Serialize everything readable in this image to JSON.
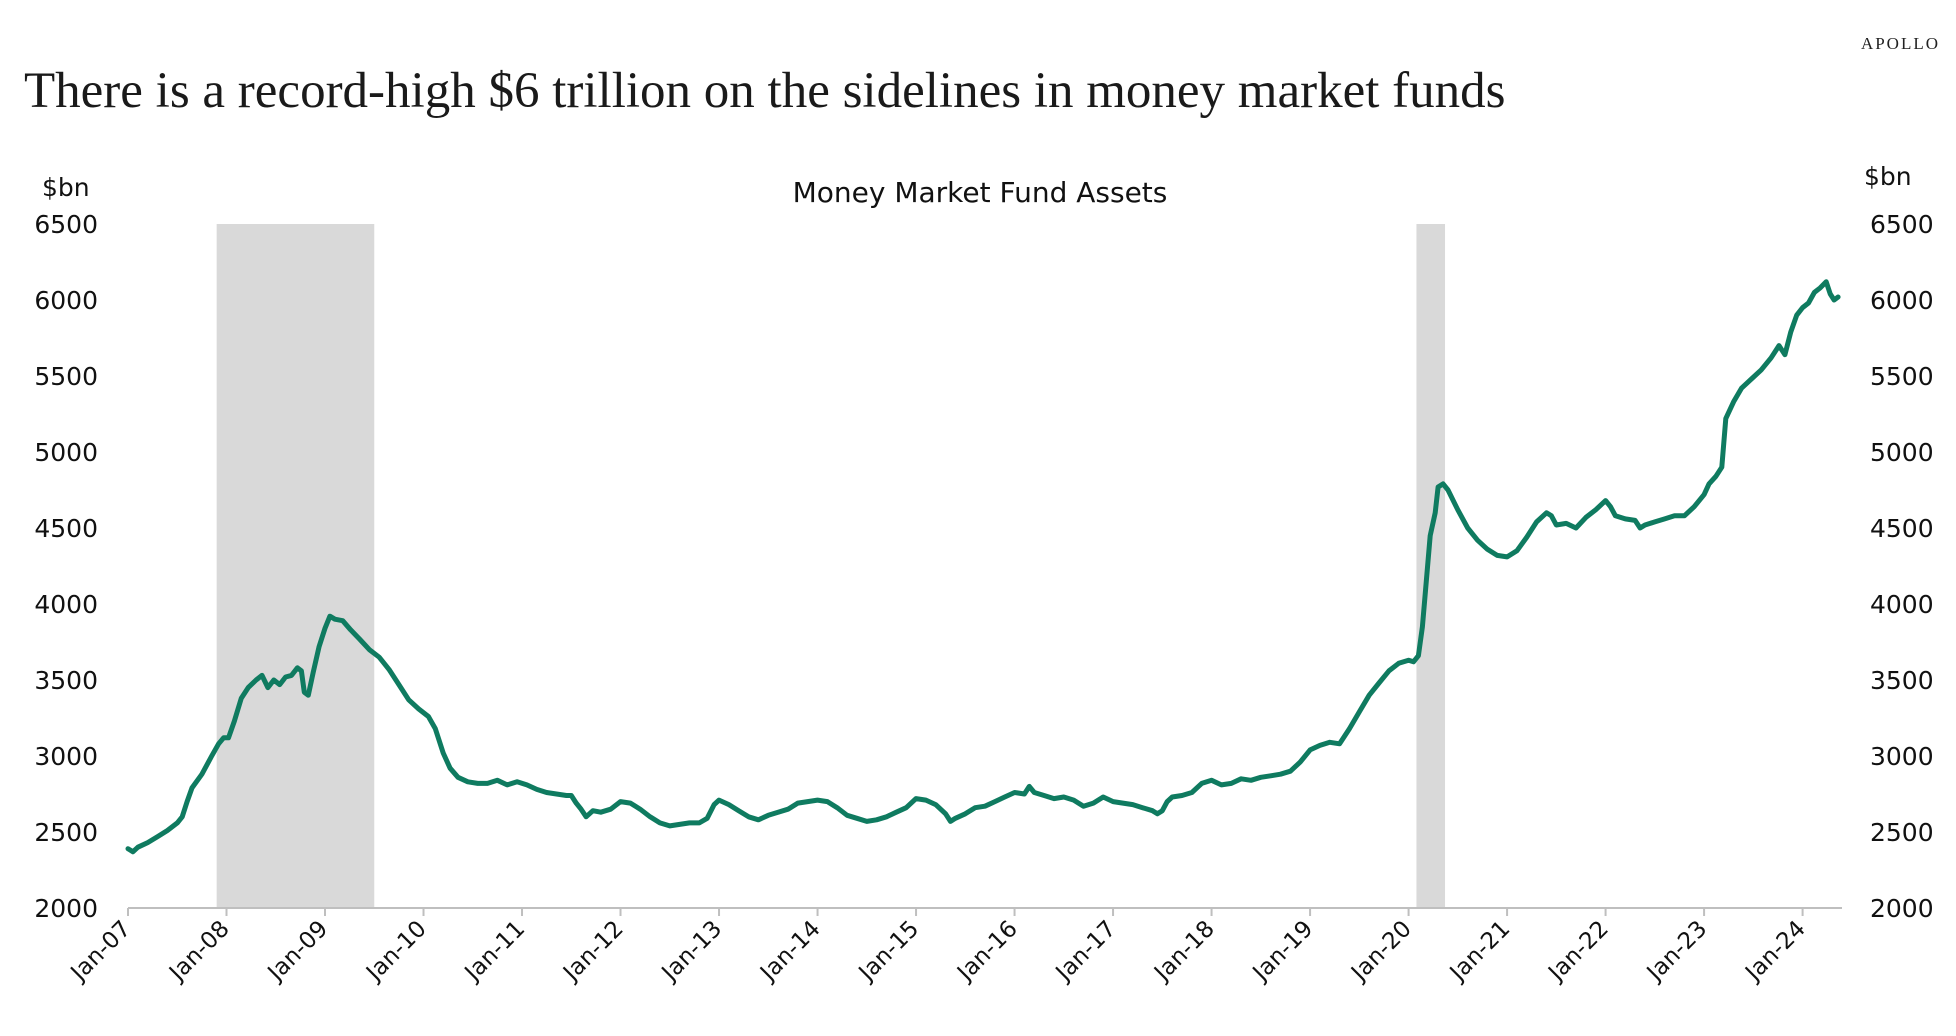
{
  "header": {
    "brand": "APOLLO",
    "headline": "There is a record-high $6 trillion on the sidelines in money market funds"
  },
  "chart_data": {
    "type": "line",
    "title": "Money Market Fund Assets",
    "ylabel_left": "$bn",
    "ylabel_right": "$bn",
    "ylim": [
      2000,
      6500
    ],
    "yticks": [
      2000,
      2500,
      3000,
      3500,
      4000,
      4500,
      5000,
      5500,
      6000,
      6500
    ],
    "xlim": [
      2007.0,
      2024.4
    ],
    "xticks": [
      {
        "x": 2007,
        "label": "Jan-07"
      },
      {
        "x": 2008,
        "label": "Jan-08"
      },
      {
        "x": 2009,
        "label": "Jan-09"
      },
      {
        "x": 2010,
        "label": "Jan-10"
      },
      {
        "x": 2011,
        "label": "Jan-11"
      },
      {
        "x": 2012,
        "label": "Jan-12"
      },
      {
        "x": 2013,
        "label": "Jan-13"
      },
      {
        "x": 2014,
        "label": "Jan-14"
      },
      {
        "x": 2015,
        "label": "Jan-15"
      },
      {
        "x": 2016,
        "label": "Jan-16"
      },
      {
        "x": 2017,
        "label": "Jan-17"
      },
      {
        "x": 2018,
        "label": "Jan-18"
      },
      {
        "x": 2019,
        "label": "Jan-19"
      },
      {
        "x": 2020,
        "label": "Jan-20"
      },
      {
        "x": 2021,
        "label": "Jan-21"
      },
      {
        "x": 2022,
        "label": "Jan-22"
      },
      {
        "x": 2023,
        "label": "Jan-23"
      },
      {
        "x": 2024,
        "label": "Jan-24"
      }
    ],
    "shaded_periods": [
      {
        "start": 2007.9,
        "end": 2009.5
      },
      {
        "start": 2020.08,
        "end": 2020.37
      }
    ],
    "grid": false,
    "line_color": "#0f7b60",
    "shade_color": "#d9d9d9",
    "series": [
      {
        "points": [
          [
            2007.0,
            2390
          ],
          [
            2007.05,
            2370
          ],
          [
            2007.1,
            2400
          ],
          [
            2007.2,
            2430
          ],
          [
            2007.3,
            2470
          ],
          [
            2007.4,
            2510
          ],
          [
            2007.5,
            2560
          ],
          [
            2007.55,
            2600
          ],
          [
            2007.6,
            2700
          ],
          [
            2007.65,
            2790
          ],
          [
            2007.75,
            2880
          ],
          [
            2007.85,
            3000
          ],
          [
            2007.92,
            3080
          ],
          [
            2007.97,
            3120
          ],
          [
            2008.02,
            3120
          ],
          [
            2008.08,
            3230
          ],
          [
            2008.15,
            3380
          ],
          [
            2008.22,
            3450
          ],
          [
            2008.3,
            3500
          ],
          [
            2008.36,
            3530
          ],
          [
            2008.42,
            3450
          ],
          [
            2008.48,
            3500
          ],
          [
            2008.54,
            3470
          ],
          [
            2008.6,
            3520
          ],
          [
            2008.66,
            3530
          ],
          [
            2008.72,
            3580
          ],
          [
            2008.76,
            3560
          ],
          [
            2008.79,
            3420
          ],
          [
            2008.83,
            3400
          ],
          [
            2008.88,
            3550
          ],
          [
            2008.94,
            3720
          ],
          [
            2009.0,
            3840
          ],
          [
            2009.05,
            3920
          ],
          [
            2009.1,
            3900
          ],
          [
            2009.18,
            3890
          ],
          [
            2009.26,
            3830
          ],
          [
            2009.35,
            3770
          ],
          [
            2009.45,
            3700
          ],
          [
            2009.55,
            3650
          ],
          [
            2009.65,
            3570
          ],
          [
            2009.75,
            3470
          ],
          [
            2009.85,
            3370
          ],
          [
            2009.95,
            3310
          ],
          [
            2010.05,
            3260
          ],
          [
            2010.12,
            3180
          ],
          [
            2010.2,
            3020
          ],
          [
            2010.27,
            2920
          ],
          [
            2010.35,
            2860
          ],
          [
            2010.45,
            2830
          ],
          [
            2010.55,
            2820
          ],
          [
            2010.65,
            2820
          ],
          [
            2010.75,
            2840
          ],
          [
            2010.85,
            2810
          ],
          [
            2010.95,
            2830
          ],
          [
            2011.05,
            2810
          ],
          [
            2011.15,
            2780
          ],
          [
            2011.25,
            2760
          ],
          [
            2011.35,
            2750
          ],
          [
            2011.45,
            2740
          ],
          [
            2011.5,
            2740
          ],
          [
            2011.55,
            2690
          ],
          [
            2011.6,
            2650
          ],
          [
            2011.65,
            2600
          ],
          [
            2011.72,
            2640
          ],
          [
            2011.8,
            2630
          ],
          [
            2011.9,
            2650
          ],
          [
            2012.0,
            2700
          ],
          [
            2012.1,
            2690
          ],
          [
            2012.2,
            2650
          ],
          [
            2012.3,
            2600
          ],
          [
            2012.4,
            2560
          ],
          [
            2012.5,
            2540
          ],
          [
            2012.6,
            2550
          ],
          [
            2012.7,
            2560
          ],
          [
            2012.8,
            2560
          ],
          [
            2012.88,
            2590
          ],
          [
            2012.95,
            2680
          ],
          [
            2013.0,
            2710
          ],
          [
            2013.1,
            2680
          ],
          [
            2013.2,
            2640
          ],
          [
            2013.3,
            2600
          ],
          [
            2013.4,
            2580
          ],
          [
            2013.5,
            2610
          ],
          [
            2013.6,
            2630
          ],
          [
            2013.7,
            2650
          ],
          [
            2013.8,
            2690
          ],
          [
            2013.9,
            2700
          ],
          [
            2014.0,
            2710
          ],
          [
            2014.1,
            2700
          ],
          [
            2014.2,
            2660
          ],
          [
            2014.3,
            2610
          ],
          [
            2014.4,
            2590
          ],
          [
            2014.5,
            2570
          ],
          [
            2014.6,
            2580
          ],
          [
            2014.7,
            2600
          ],
          [
            2014.8,
            2630
          ],
          [
            2014.9,
            2660
          ],
          [
            2015.0,
            2720
          ],
          [
            2015.1,
            2710
          ],
          [
            2015.2,
            2680
          ],
          [
            2015.3,
            2620
          ],
          [
            2015.35,
            2570
          ],
          [
            2015.4,
            2590
          ],
          [
            2015.5,
            2620
          ],
          [
            2015.6,
            2660
          ],
          [
            2015.7,
            2670
          ],
          [
            2015.8,
            2700
          ],
          [
            2015.9,
            2730
          ],
          [
            2016.0,
            2760
          ],
          [
            2016.1,
            2750
          ],
          [
            2016.15,
            2800
          ],
          [
            2016.2,
            2760
          ],
          [
            2016.3,
            2740
          ],
          [
            2016.4,
            2720
          ],
          [
            2016.5,
            2730
          ],
          [
            2016.6,
            2710
          ],
          [
            2016.7,
            2670
          ],
          [
            2016.8,
            2690
          ],
          [
            2016.9,
            2730
          ],
          [
            2017.0,
            2700
          ],
          [
            2017.1,
            2690
          ],
          [
            2017.2,
            2680
          ],
          [
            2017.3,
            2660
          ],
          [
            2017.4,
            2640
          ],
          [
            2017.45,
            2620
          ],
          [
            2017.5,
            2640
          ],
          [
            2017.55,
            2700
          ],
          [
            2017.6,
            2730
          ],
          [
            2017.7,
            2740
          ],
          [
            2017.8,
            2760
          ],
          [
            2017.9,
            2820
          ],
          [
            2018.0,
            2840
          ],
          [
            2018.1,
            2810
          ],
          [
            2018.2,
            2820
          ],
          [
            2018.3,
            2850
          ],
          [
            2018.4,
            2840
          ],
          [
            2018.5,
            2860
          ],
          [
            2018.6,
            2870
          ],
          [
            2018.7,
            2880
          ],
          [
            2018.8,
            2900
          ],
          [
            2018.9,
            2960
          ],
          [
            2019.0,
            3040
          ],
          [
            2019.1,
            3070
          ],
          [
            2019.2,
            3090
          ],
          [
            2019.3,
            3080
          ],
          [
            2019.4,
            3180
          ],
          [
            2019.5,
            3290
          ],
          [
            2019.6,
            3400
          ],
          [
            2019.7,
            3480
          ],
          [
            2019.8,
            3560
          ],
          [
            2019.9,
            3610
          ],
          [
            2020.0,
            3630
          ],
          [
            2020.05,
            3620
          ],
          [
            2020.1,
            3660
          ],
          [
            2020.14,
            3850
          ],
          [
            2020.18,
            4150
          ],
          [
            2020.22,
            4450
          ],
          [
            2020.27,
            4600
          ],
          [
            2020.3,
            4770
          ],
          [
            2020.35,
            4790
          ],
          [
            2020.4,
            4750
          ],
          [
            2020.5,
            4620
          ],
          [
            2020.6,
            4500
          ],
          [
            2020.7,
            4420
          ],
          [
            2020.8,
            4360
          ],
          [
            2020.9,
            4320
          ],
          [
            2021.0,
            4310
          ],
          [
            2021.1,
            4350
          ],
          [
            2021.2,
            4440
          ],
          [
            2021.3,
            4540
          ],
          [
            2021.4,
            4600
          ],
          [
            2021.45,
            4580
          ],
          [
            2021.5,
            4520
          ],
          [
            2021.6,
            4530
          ],
          [
            2021.7,
            4500
          ],
          [
            2021.8,
            4570
          ],
          [
            2021.9,
            4620
          ],
          [
            2022.0,
            4680
          ],
          [
            2022.05,
            4640
          ],
          [
            2022.1,
            4580
          ],
          [
            2022.2,
            4560
          ],
          [
            2022.3,
            4550
          ],
          [
            2022.35,
            4500
          ],
          [
            2022.4,
            4520
          ],
          [
            2022.5,
            4540
          ],
          [
            2022.6,
            4560
          ],
          [
            2022.7,
            4580
          ],
          [
            2022.8,
            4580
          ],
          [
            2022.9,
            4640
          ],
          [
            2023.0,
            4720
          ],
          [
            2023.05,
            4790
          ],
          [
            2023.12,
            4840
          ],
          [
            2023.18,
            4900
          ],
          [
            2023.22,
            5220
          ],
          [
            2023.3,
            5330
          ],
          [
            2023.38,
            5420
          ],
          [
            2023.48,
            5480
          ],
          [
            2023.58,
            5540
          ],
          [
            2023.68,
            5620
          ],
          [
            2023.76,
            5700
          ],
          [
            2023.82,
            5640
          ],
          [
            2023.88,
            5790
          ],
          [
            2023.94,
            5900
          ],
          [
            2024.0,
            5950
          ],
          [
            2024.06,
            5980
          ],
          [
            2024.12,
            6050
          ],
          [
            2024.18,
            6080
          ],
          [
            2024.24,
            6120
          ],
          [
            2024.28,
            6040
          ],
          [
            2024.32,
            6000
          ],
          [
            2024.36,
            6020
          ]
        ]
      }
    ]
  }
}
